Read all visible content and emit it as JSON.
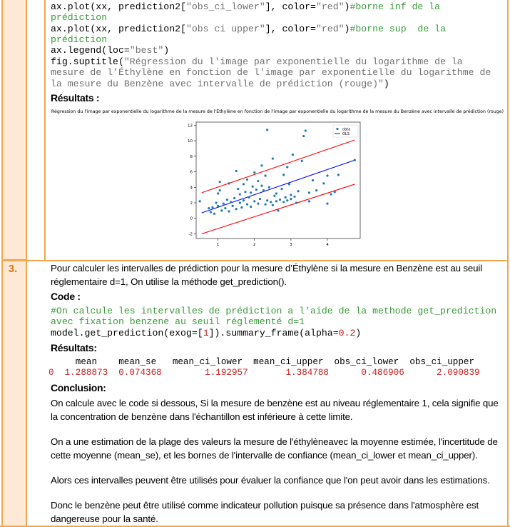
{
  "code_top": {
    "line1": {
      "fn": "ax.plot(xx, prediction2[",
      "str": "\"obs_ci_lower\"",
      "mid": "], color=",
      "col": "\"red\"",
      "end": ")",
      "comment": "#borne inf de la"
    },
    "line1b": "prédiction",
    "line2": {
      "fn": "ax.plot(xx, prediction2[",
      "str": "\"obs ci upper\"",
      "mid": "], color=",
      "col": "\"red\"",
      "end": ")",
      "comment": "#borne sup  de la"
    },
    "line2b": "prédiction",
    "line3": {
      "fn": "ax.legend(loc=",
      "str": "\"best\"",
      "end": ")"
    },
    "line4": {
      "fn": "fig.suptitle(",
      "str": "\"Régression du l'image par exponentielle du logarithme de la"
    },
    "line5": "mesure de l’Éthylène en fonction de l'image par exponentielle du logarithme de",
    "line6": {
      "str": "la mesure du Benzène avec intervalle de prédiction (rouge)\"",
      "end": ")"
    }
  },
  "results_heading_1": "Résultats :",
  "chart_data": {
    "type": "scatter",
    "title": "Régression du l'image par exponentielle du logarithme de la mesure de l'Éthylène en fonction de l'image par exponentielle du logarithme de la mesure du Benzène avec intervalle de prédiction (rouge)",
    "xlim": [
      0.4,
      4.9
    ],
    "ylim": [
      -2.6,
      12.4
    ],
    "xticks": [
      "1",
      "2",
      "3",
      "4"
    ],
    "yticks": [
      "-2",
      "0",
      "2",
      "4",
      "6",
      "8",
      "10",
      "12"
    ],
    "legend": {
      "placement": "top-right",
      "entries": [
        "data",
        "OLS"
      ]
    },
    "colors": {
      "points": "#1f77b4",
      "ols": "#0000ff",
      "ci": "#ff0000"
    },
    "ols_line": [
      [
        0.55,
        0.7
      ],
      [
        4.75,
        7.5
      ]
    ],
    "ci_lower": [
      [
        0.55,
        -2.0
      ],
      [
        4.75,
        4.4
      ]
    ],
    "ci_upper": [
      [
        0.55,
        3.3
      ],
      [
        4.75,
        10.1
      ]
    ],
    "points": [
      [
        0.5,
        2.2
      ],
      [
        0.75,
        1.3
      ],
      [
        0.8,
        0.8
      ],
      [
        0.85,
        1.4
      ],
      [
        0.9,
        0.6
      ],
      [
        0.95,
        2.0
      ],
      [
        1.0,
        1.6
      ],
      [
        1.0,
        3.2
      ],
      [
        1.05,
        4.7
      ],
      [
        1.05,
        3.6
      ],
      [
        1.1,
        1.0
      ],
      [
        1.15,
        1.9
      ],
      [
        1.2,
        1.3
      ],
      [
        1.25,
        2.4
      ],
      [
        1.3,
        0.9
      ],
      [
        1.3,
        4.5
      ],
      [
        1.35,
        2.1
      ],
      [
        1.4,
        1.6
      ],
      [
        1.45,
        2.6
      ],
      [
        1.5,
        1.2
      ],
      [
        1.5,
        6.1
      ],
      [
        1.55,
        3.8
      ],
      [
        1.6,
        2.0
      ],
      [
        1.6,
        3.1
      ],
      [
        1.65,
        1.4
      ],
      [
        1.7,
        2.3
      ],
      [
        1.7,
        4.4
      ],
      [
        1.75,
        3.4
      ],
      [
        1.8,
        1.8
      ],
      [
        1.8,
        5.0
      ],
      [
        1.85,
        2.7
      ],
      [
        1.9,
        1.5
      ],
      [
        1.9,
        3.3
      ],
      [
        1.95,
        4.1
      ],
      [
        2.0,
        2.2
      ],
      [
        2.0,
        5.9
      ],
      [
        2.05,
        3.7
      ],
      [
        2.1,
        1.9
      ],
      [
        2.1,
        4.8
      ],
      [
        2.15,
        2.5
      ],
      [
        2.2,
        4.2
      ],
      [
        2.2,
        6.8
      ],
      [
        2.25,
        3.6
      ],
      [
        2.3,
        1.8
      ],
      [
        2.3,
        5.5
      ],
      [
        2.35,
        2.3
      ],
      [
        2.35,
        11.4
      ],
      [
        2.4,
        4.0
      ],
      [
        2.45,
        2.1
      ],
      [
        2.5,
        1.7
      ],
      [
        2.5,
        7.7
      ],
      [
        2.55,
        2.9
      ],
      [
        2.6,
        2.2
      ],
      [
        2.6,
        3.2
      ],
      [
        2.65,
        1.0
      ],
      [
        2.7,
        2.4
      ],
      [
        2.75,
        3.8
      ],
      [
        2.8,
        2.1
      ],
      [
        2.8,
        5.6
      ],
      [
        2.85,
        2.7
      ],
      [
        2.9,
        2.3
      ],
      [
        2.9,
        6.6
      ],
      [
        2.95,
        4.4
      ],
      [
        3.0,
        2.5
      ],
      [
        3.0,
        3.0
      ],
      [
        3.05,
        8.2
      ],
      [
        3.1,
        2.8
      ],
      [
        3.15,
        2.0
      ],
      [
        3.2,
        3.5
      ],
      [
        3.3,
        7.4
      ],
      [
        3.35,
        10.6
      ],
      [
        3.4,
        11.3
      ],
      [
        3.5,
        2.2
      ],
      [
        3.5,
        3.3
      ],
      [
        3.6,
        4.9
      ],
      [
        3.7,
        3.6
      ],
      [
        3.9,
        4.5
      ],
      [
        4.0,
        1.9
      ],
      [
        4.0,
        5.5
      ],
      [
        4.1,
        3.1
      ],
      [
        4.2,
        3.4
      ],
      [
        4.3,
        5.6
      ],
      [
        4.75,
        7.5
      ]
    ]
  },
  "step3": {
    "number": "3.",
    "intro": "Pour calculer les intervalles de prédiction pour la mesure d’Éthylène si la mesure en Benzène est au seuil réglementaire d=1, On utilise la méthode get_prediction().",
    "code_heading": "Code :",
    "comment1": "#On calcule les intervalles de prédiction a l'aide de la methode get_prediction",
    "comment2": "avec fixation benzene au seuil réglementé d=1",
    "call_start": "model.get_prediction(exog=[",
    "call_arg": "1",
    "call_mid": "]).summary_frame(alpha=",
    "call_alpha": "0.2",
    "call_end": ")",
    "results_heading": "Résultats:",
    "table_header": "     mean    mean_se   mean_ci_lower  mean_ci_upper  obs_ci_lower  obs_ci_upper",
    "table_row": "0  1.288873  0.074368        1.192957       1.384788      0.486906      2.090839",
    "conclusion_heading": "Conclusion:",
    "p1": "On calcule avec le code si dessous, Si la mesure de benzène est au niveau réglementaire 1, cela signifie que la concentration de benzène dans l'échantillon est inférieure à cette limite.",
    "p2": "On a une estimation de la plage des valeurs la mesure de l'éthylèneavec la moyenne estimée, l'incertitude de cette moyenne (mean_se), et les bornes de l'intervalle de confiance (mean_ci_lower et mean_ci_upper).",
    "p3": "Alors ces intervalles peuvent être utilisés pour évaluer la confiance que l'on peut avoir dans les estimations.",
    "p4": "Donc le benzène peut être utilisé comme indicateur pollution puisque sa présence dans l'atmosphère est dangereuse pour la santé."
  }
}
